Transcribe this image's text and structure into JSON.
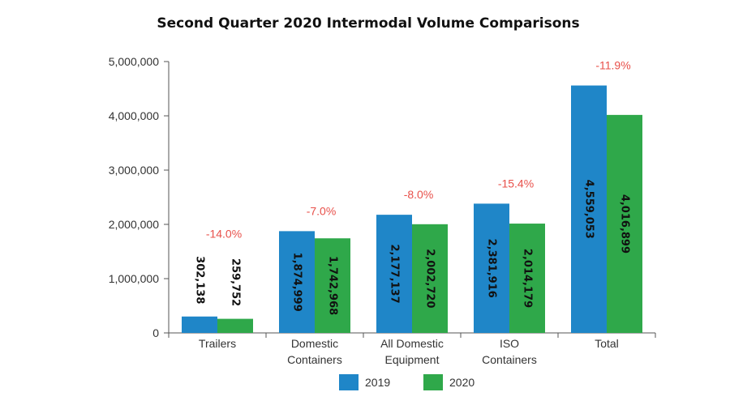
{
  "chart_data": {
    "type": "bar",
    "title": "Second Quarter 2020 Intermodal Volume Comparisons",
    "categories": [
      [
        "Trailers"
      ],
      [
        "Domestic",
        "Containers"
      ],
      [
        "All Domestic",
        "Equipment"
      ],
      [
        "ISO",
        "Containers"
      ],
      [
        "Total"
      ]
    ],
    "series": [
      {
        "name": "2019",
        "color": "#1f86c8",
        "values": [
          302138,
          1874999,
          2177137,
          2381916,
          4559053
        ],
        "labels": [
          "302,138",
          "1,874,999",
          "2,177,137",
          "2,381,916",
          "4,559,053"
        ]
      },
      {
        "name": "2020",
        "color": "#2fa84a",
        "values": [
          259752,
          1742968,
          2002720,
          2014179,
          4016899
        ],
        "labels": [
          "259,752",
          "1,742,968",
          "2,002,720",
          "2,014,179",
          "4,016,899"
        ]
      }
    ],
    "changes": [
      "-14.0%",
      "-7.0%",
      "-8.0%",
      "-15.4%",
      "-11.9%"
    ],
    "change_color": "#e8504a",
    "ylim": [
      0,
      5000000
    ],
    "yticks": [
      0,
      1000000,
      2000000,
      3000000,
      4000000,
      5000000
    ],
    "ytick_labels": [
      "0",
      "1,000,000",
      "2,000,000",
      "3,000,000",
      "4,000,000",
      "5,000,000"
    ],
    "grid": false,
    "legend": "bottom-center"
  }
}
